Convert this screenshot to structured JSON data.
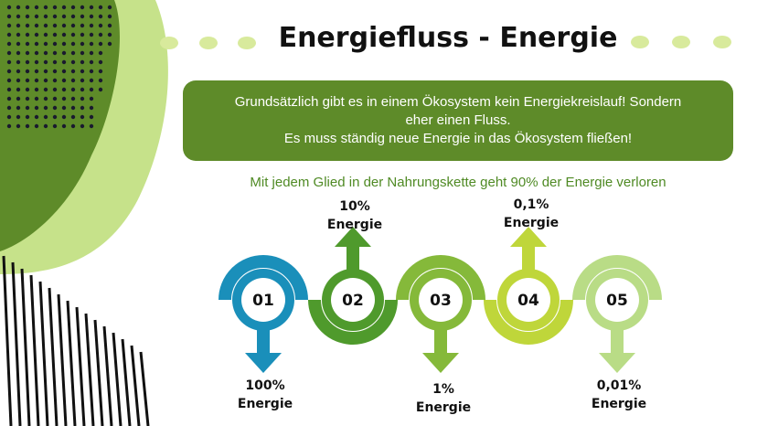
{
  "title": "Energiefluss - Energie",
  "banner": {
    "line1": "Grundsätzlich gibt es in einem Ökosystem kein Energiekreislauf!  Sondern",
    "line2": "eher einen Fluss.",
    "line3": "Es muss ständig neue Energie in das Ökosystem fließen!"
  },
  "subtitle": "Mit jedem Glied in der Nahrungskette geht 90% der Energie verloren",
  "steps": [
    {
      "number": "01",
      "value": "100%",
      "unit": "Energie",
      "arrow": "down",
      "color": "#1a8fba"
    },
    {
      "number": "02",
      "value": "10%",
      "unit": "Energie",
      "arrow": "up",
      "color": "#4f9a2c"
    },
    {
      "number": "03",
      "value": "1%",
      "unit": "Energie",
      "arrow": "down",
      "color": "#85b93a"
    },
    {
      "number": "04",
      "value": "0,1%",
      "unit": "Energie",
      "arrow": "up",
      "color": "#bfd63a"
    },
    {
      "number": "05",
      "value": "0,01%",
      "unit": "Energie",
      "arrow": "down",
      "color": "#b9dc86"
    }
  ],
  "colors": {
    "banner": "#5e8b29",
    "dark_green": "#5e8b29",
    "light_green": "#c6e28a"
  }
}
